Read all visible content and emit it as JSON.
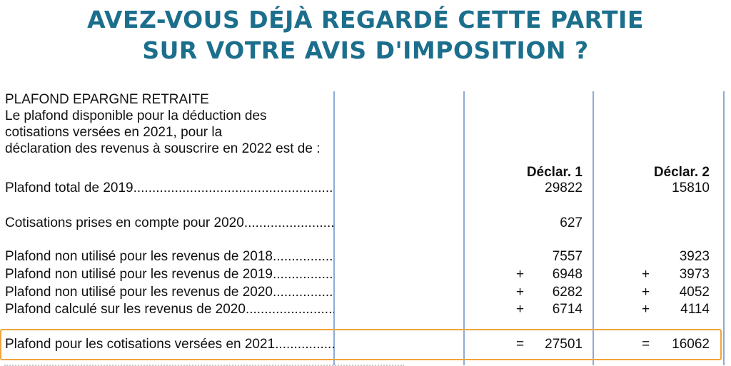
{
  "headline": {
    "line1": "AVEZ-VOUS DÉJÀ REGARDÉ CETTE PARTIE",
    "line2": "SUR VOTRE AVIS D'IMPOSITION ?"
  },
  "section": {
    "title": "PLAFOND EPARGNE RETRAITE",
    "intro_lines": [
      "Le plafond disponible pour la déduction des",
      "cotisations versées en 2021, pour la",
      "déclaration des revenus à souscrire en 2022 est de :"
    ]
  },
  "columns": {
    "decl1": "Déclar. 1",
    "decl2": "Déclar. 2"
  },
  "rows": [
    {
      "label": "Plafond total de 2019",
      "op1": "",
      "v1": "29822",
      "op2": "",
      "v2": "15810"
    },
    {
      "label": "Cotisations prises en compte pour 2020",
      "op1": "",
      "v1": "627",
      "op2": "",
      "v2": ""
    },
    {
      "label": "Plafond non utilisé pour les revenus de 2018",
      "op1": "",
      "v1": "7557",
      "op2": "",
      "v2": "3923"
    },
    {
      "label": "Plafond non utilisé pour les revenus de 2019",
      "op1": "+",
      "v1": "6948",
      "op2": "+",
      "v2": "3973"
    },
    {
      "label": "Plafond non utilisé pour les revenus de 2020",
      "op1": "+",
      "v1": "6282",
      "op2": "+",
      "v2": "4052"
    },
    {
      "label": "Plafond calculé sur les revenus de 2020",
      "op1": "+",
      "v1": "6714",
      "op2": "+",
      "v2": "4114"
    },
    {
      "label": "Plafond pour les cotisations versées en 2021",
      "op1": "=",
      "v1": "27501",
      "op2": "=",
      "v2": "16062"
    }
  ],
  "colors": {
    "headline": "#1c6f8c",
    "column_rule": "#8eaad6",
    "highlight_border": "#f1a43c"
  }
}
